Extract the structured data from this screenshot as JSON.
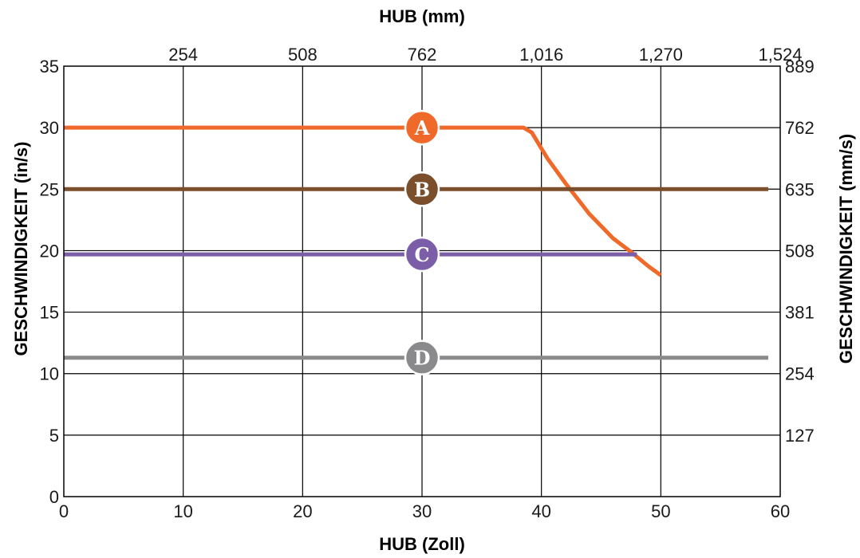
{
  "chart_data": {
    "type": "line",
    "xlabel": "HUB (Zoll)",
    "ylabel": "GESCHWINDIGKEIT (in/s)",
    "x2label": "HUB (mm)",
    "y2label": "GESCHWINDIGKEIT (mm/s)",
    "xlim": [
      0,
      60
    ],
    "ylim": [
      0,
      35
    ],
    "grid": true,
    "x_ticks": [
      0,
      10,
      20,
      30,
      40,
      50,
      60
    ],
    "y_ticks": [
      0,
      5,
      10,
      15,
      20,
      25,
      30,
      35
    ],
    "x2_ticks": [
      {
        "at": 10,
        "label": "254"
      },
      {
        "at": 20,
        "label": "508"
      },
      {
        "at": 30,
        "label": "762"
      },
      {
        "at": 40,
        "label": "1,016"
      },
      {
        "at": 50,
        "label": "1,270"
      },
      {
        "at": 60,
        "label": "1,524"
      }
    ],
    "y2_ticks": [
      {
        "at": 5,
        "label": "127"
      },
      {
        "at": 10,
        "label": "254"
      },
      {
        "at": 15,
        "label": "381"
      },
      {
        "at": 20,
        "label": "508"
      },
      {
        "at": 25,
        "label": "635"
      },
      {
        "at": 30,
        "label": "762"
      },
      {
        "at": 35,
        "label": "889"
      }
    ],
    "series": [
      {
        "name": "A",
        "color": "#ef6a2a",
        "x": [
          0,
          38.5,
          39.2,
          40,
          40.5,
          42,
          44,
          46,
          47.5,
          49,
          50
        ],
        "y": [
          30,
          30,
          29.6,
          28.3,
          27.5,
          25.5,
          23.0,
          21.0,
          19.9,
          18.7,
          18.0
        ]
      },
      {
        "name": "B",
        "color": "#7b4f2c",
        "x": [
          0,
          59
        ],
        "y": [
          25,
          25
        ]
      },
      {
        "name": "C",
        "color": "#7b5ea7",
        "x": [
          0,
          48
        ],
        "y": [
          19.7,
          19.7
        ]
      },
      {
        "name": "D",
        "color": "#8a8a8c",
        "x": [
          0,
          59
        ],
        "y": [
          11.3,
          11.3
        ]
      }
    ],
    "badge_x": 30
  }
}
